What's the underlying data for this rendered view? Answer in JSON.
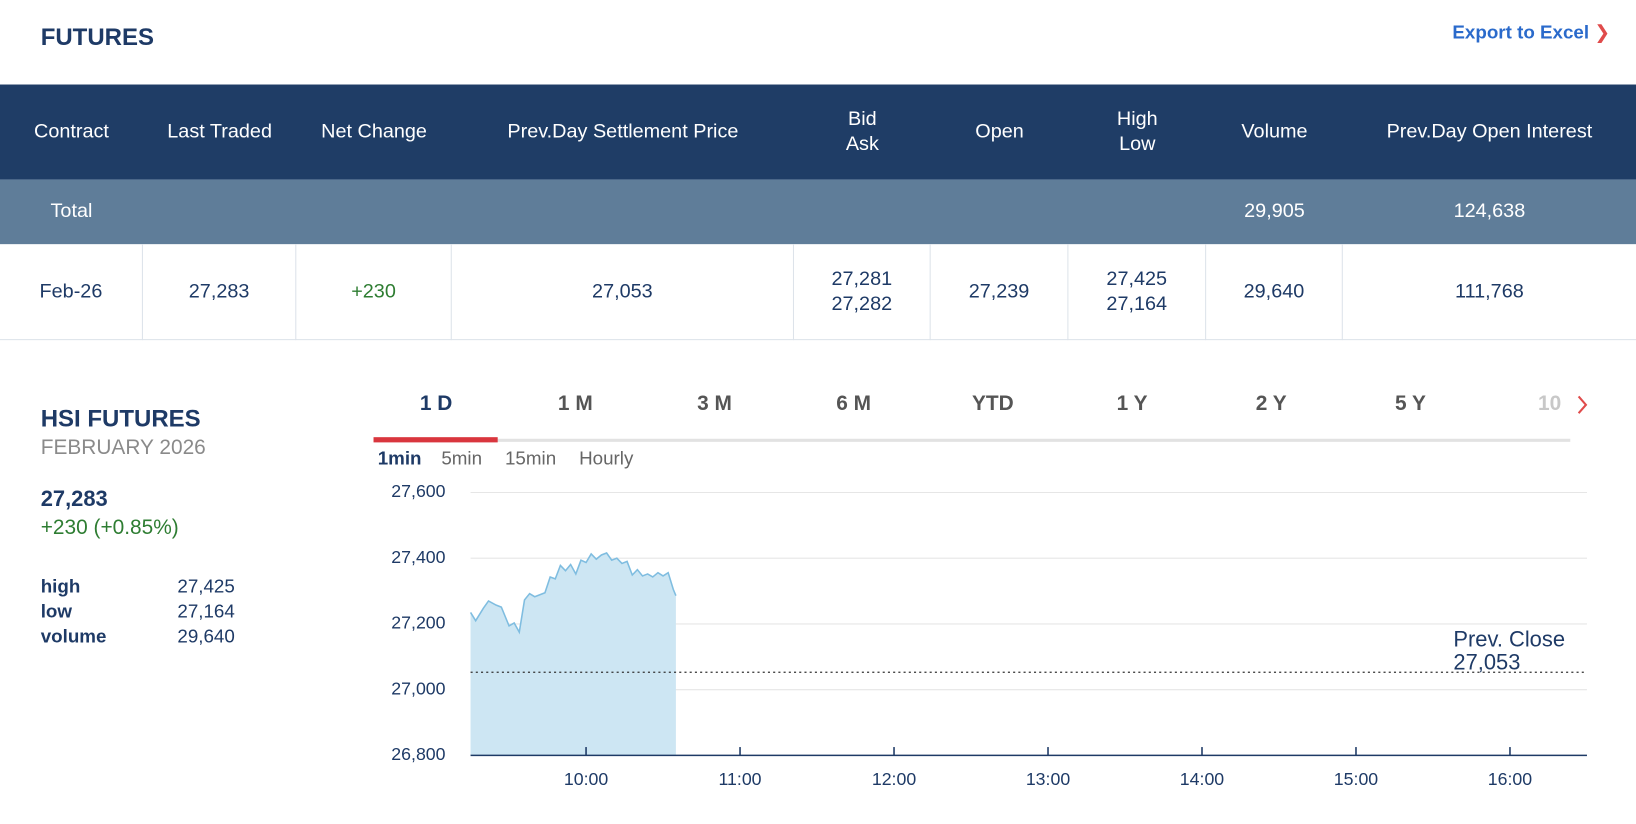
{
  "header": {
    "title": "FUTURES",
    "export": "Export to Excel"
  },
  "table": {
    "columns": [
      "Contract",
      "Last Traded",
      "Net Change",
      "Prev.Day Settlement Price",
      [
        "Bid",
        "Ask"
      ],
      "Open",
      [
        "High",
        "Low"
      ],
      "Volume",
      "Prev.Day Open Interest"
    ],
    "total": {
      "label": "Total",
      "volume": "29,905",
      "open_interest": "124,638"
    },
    "rows": [
      [
        "Feb-26",
        "27,283",
        "+230",
        "27,053",
        [
          "27,281",
          "27,282"
        ],
        "27,239",
        [
          "27,425",
          "27,164"
        ],
        "29,640",
        "111,768"
      ]
    ]
  },
  "quote": {
    "name": "HSI FUTURES",
    "month": "FEBRUARY 2026",
    "price": "27,283",
    "change": "+230 (+0.85%)",
    "stats": [
      {
        "label": "high",
        "value": "27,425"
      },
      {
        "label": "low",
        "value": "27,164"
      },
      {
        "label": "volume",
        "value": "29,640"
      }
    ]
  },
  "ranges": [
    "1 D",
    "1 M",
    "3 M",
    "6 M",
    "YTD",
    "1 Y",
    "2 Y",
    "5 Y",
    "10"
  ],
  "intervals": [
    "1min",
    "5min",
    "15min",
    "Hourly"
  ],
  "chart_data": {
    "type": "area",
    "x": [
      "09:15",
      "09:17",
      "09:20",
      "09:22",
      "09:25",
      "09:27",
      "09:30",
      "09:32",
      "09:34",
      "09:36",
      "09:38",
      "09:40",
      "09:42",
      "09:44",
      "09:46",
      "09:48",
      "09:50",
      "09:52",
      "09:54",
      "09:56",
      "09:58",
      "10:00",
      "10:02",
      "10:04",
      "10:06",
      "10:08",
      "10:10",
      "10:12",
      "10:14",
      "10:16",
      "10:18",
      "10:20",
      "10:22",
      "10:24",
      "10:26",
      "10:28",
      "10:30",
      "10:32",
      "10:34",
      "10:35"
    ],
    "series": [
      {
        "color": "#7fbde0",
        "fill": "#cde6f3",
        "values": [
          27235,
          27210,
          27248,
          27270,
          27257,
          27251,
          27194,
          27203,
          27175,
          27273,
          27292,
          27283,
          27289,
          27295,
          27343,
          27337,
          27378,
          27362,
          27381,
          27352,
          27394,
          27387,
          27413,
          27397,
          27410,
          27416,
          27394,
          27400,
          27384,
          27390,
          27349,
          27365,
          27346,
          27352,
          27343,
          27356,
          27346,
          27356,
          27305,
          27286
        ]
      }
    ],
    "xlim": [
      "09:15",
      "16:30"
    ],
    "xticks": [
      "10:00",
      "11:00",
      "12:00",
      "13:00",
      "14:00",
      "15:00",
      "16:00"
    ],
    "ylim": [
      26800,
      27600
    ],
    "yticks": [
      {
        "value": 26800,
        "label": "26,800"
      },
      {
        "value": 27000,
        "label": "27,000"
      },
      {
        "value": 27200,
        "label": "27,200"
      },
      {
        "value": 27400,
        "label": "27,400"
      },
      {
        "value": 27600,
        "label": "27,600"
      }
    ],
    "grid": true,
    "reference_line": {
      "label": "Prev. Close",
      "value": 27053,
      "value_label": "27,053"
    }
  }
}
